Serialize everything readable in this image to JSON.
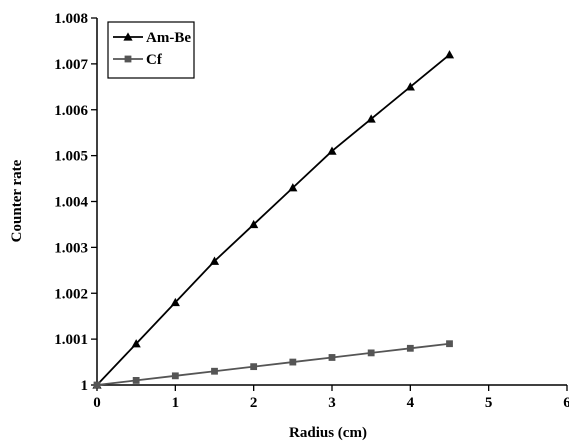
{
  "chart_data": {
    "type": "line",
    "title": "",
    "xlabel": "Radius (cm)",
    "ylabel": "Counter rate",
    "xlim": [
      0,
      6
    ],
    "ylim": [
      1,
      1.008
    ],
    "x_ticks": [
      "0",
      "1",
      "2",
      "3",
      "4",
      "5",
      "6"
    ],
    "y_ticks": [
      "1",
      "1.001",
      "1.002",
      "1.003",
      "1.004",
      "1.005",
      "1.006",
      "1.007",
      "1.008"
    ],
    "grid": false,
    "legend_position": "top-left",
    "series": [
      {
        "name": "Am-Be",
        "marker": "triangle",
        "color": "#000000",
        "x": [
          0,
          0.5,
          1,
          1.5,
          2,
          2.5,
          3,
          3.5,
          4,
          4.5
        ],
        "y": [
          1.0,
          1.0009,
          1.0018,
          1.0027,
          1.0035,
          1.0043,
          1.0051,
          1.0058,
          1.0065,
          1.0072
        ]
      },
      {
        "name": "Cf",
        "marker": "square",
        "color": "#555555",
        "x": [
          0,
          0.5,
          1,
          1.5,
          2,
          2.5,
          3,
          3.5,
          4,
          4.5
        ],
        "y": [
          1.0,
          1.0001,
          1.0002,
          1.0003,
          1.0004,
          1.0005,
          1.0006,
          1.0007,
          1.0008,
          1.0009
        ]
      }
    ]
  }
}
